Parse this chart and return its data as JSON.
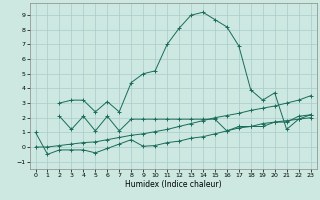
{
  "title": "",
  "xlabel": "Humidex (Indice chaleur)",
  "bg_color": "#cce8e0",
  "grid_color": "#aacccc",
  "line_color": "#1a6b5a",
  "x_values": [
    0,
    1,
    2,
    3,
    4,
    5,
    6,
    7,
    8,
    9,
    10,
    11,
    12,
    13,
    14,
    15,
    16,
    17,
    18,
    19,
    20,
    21,
    22,
    23
  ],
  "s1": [
    1.0,
    -0.5,
    -0.2,
    -0.2,
    -0.2,
    -0.4,
    -0.1,
    0.2,
    0.5,
    0.05,
    0.1,
    0.3,
    0.4,
    0.6,
    0.7,
    0.9,
    1.1,
    1.3,
    1.4,
    1.6,
    1.7,
    1.8,
    1.9,
    2.0
  ],
  "s2": [
    0.0,
    0.0,
    0.1,
    0.2,
    0.3,
    0.35,
    0.5,
    0.65,
    0.8,
    0.9,
    1.05,
    1.2,
    1.4,
    1.6,
    1.8,
    2.0,
    2.15,
    2.3,
    2.5,
    2.65,
    2.8,
    3.0,
    3.2,
    3.5
  ],
  "s3": [
    null,
    null,
    2.1,
    1.2,
    2.1,
    1.1,
    2.1,
    1.1,
    1.9,
    1.9,
    1.9,
    1.9,
    1.9,
    1.9,
    1.9,
    1.9,
    1.1,
    1.4,
    1.4,
    1.4,
    1.7,
    1.7,
    2.1,
    2.2
  ],
  "s4": [
    null,
    null,
    3.0,
    3.2,
    3.2,
    2.4,
    3.1,
    2.4,
    4.4,
    5.0,
    5.2,
    7.0,
    8.1,
    9.0,
    9.2,
    8.7,
    8.2,
    6.9,
    3.9,
    3.2,
    3.7,
    1.2,
    1.9,
    2.2
  ],
  "ylim": [
    -1.5,
    9.8
  ],
  "xlim": [
    -0.5,
    23.5
  ],
  "yticks": [
    -1,
    0,
    1,
    2,
    3,
    4,
    5,
    6,
    7,
    8,
    9
  ],
  "xticks": [
    0,
    1,
    2,
    3,
    4,
    5,
    6,
    7,
    8,
    9,
    10,
    11,
    12,
    13,
    14,
    15,
    16,
    17,
    18,
    19,
    20,
    21,
    22,
    23
  ]
}
